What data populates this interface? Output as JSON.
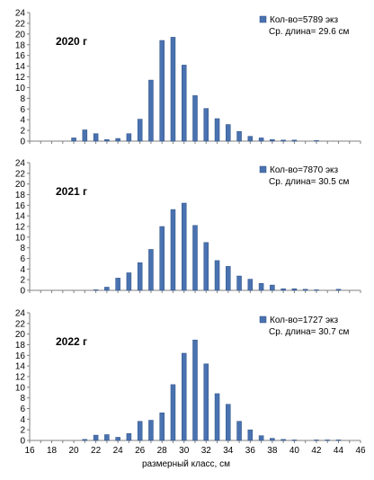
{
  "chart_data": [
    {
      "type": "bar",
      "title": "2020 г",
      "legend": {
        "series_label": "Кол-во=5789 экз",
        "note": "Ср. длина= 29.6 см",
        "placement": "top-right"
      },
      "series_color": "#4a72b0",
      "ylim": [
        0,
        24
      ],
      "yticks": [
        "0",
        "2",
        "4",
        "6",
        "8",
        "10",
        "12",
        "14",
        "16",
        "18",
        "20",
        "22",
        "24"
      ],
      "x": [
        20,
        21,
        22,
        23,
        24,
        25,
        26,
        27,
        28,
        29,
        30,
        31,
        32,
        33,
        34,
        35,
        36,
        37,
        38,
        39,
        40,
        41,
        42
      ],
      "values": [
        0.6,
        2.1,
        1.4,
        0.3,
        0.5,
        1.4,
        4.1,
        11.4,
        18.8,
        19.4,
        14.2,
        8.5,
        6.1,
        4.2,
        3.1,
        1.8,
        0.9,
        0.6,
        0.3,
        0.2,
        0.2,
        0.0,
        0.1
      ]
    },
    {
      "type": "bar",
      "title": "2021 г",
      "legend": {
        "series_label": "Кол-во=7870 экз",
        "note": "Ср. длина= 30.5 см",
        "placement": "top-right"
      },
      "series_color": "#4a72b0",
      "ylim": [
        0,
        24
      ],
      "yticks": [
        "0",
        "2",
        "4",
        "6",
        "8",
        "10",
        "12",
        "14",
        "16",
        "18",
        "20",
        "22",
        "24"
      ],
      "x": [
        22,
        23,
        24,
        25,
        26,
        27,
        28,
        29,
        30,
        31,
        32,
        33,
        34,
        35,
        36,
        37,
        38,
        39,
        40,
        41,
        42,
        43,
        44
      ],
      "values": [
        0.1,
        0.6,
        2.3,
        3.3,
        5.2,
        7.7,
        12.0,
        15.2,
        16.4,
        12.2,
        9.0,
        5.6,
        4.5,
        2.7,
        2.1,
        1.3,
        1.0,
        0.3,
        0.3,
        0.2,
        0.1,
        0.0,
        0.2
      ]
    },
    {
      "type": "bar",
      "title": "2022 г",
      "legend": {
        "series_label": "Кол-во=1727 экз",
        "note": "Ср. длина= 30.7 см",
        "placement": "top-right"
      },
      "series_color": "#4a72b0",
      "ylim": [
        0,
        24
      ],
      "yticks": [
        "0",
        "2",
        "4",
        "6",
        "8",
        "10",
        "12",
        "14",
        "16",
        "18",
        "20",
        "22",
        "24"
      ],
      "x": [
        21,
        22,
        23,
        24,
        25,
        26,
        27,
        28,
        29,
        30,
        31,
        32,
        33,
        34,
        35,
        36,
        37,
        38,
        39,
        40,
        41,
        42,
        43,
        44
      ],
      "values": [
        0.2,
        1.0,
        1.1,
        0.6,
        1.3,
        3.6,
        3.8,
        5.2,
        10.5,
        16.4,
        18.9,
        14.4,
        8.8,
        6.8,
        3.6,
        2.0,
        0.9,
        0.4,
        0.2,
        0.1,
        0.0,
        0.1,
        0.1,
        0.1
      ]
    }
  ],
  "x_axis": {
    "xlim": [
      16,
      46
    ],
    "ticks": [
      "16",
      "18",
      "20",
      "22",
      "24",
      "26",
      "28",
      "30",
      "32",
      "34",
      "36",
      "38",
      "40",
      "42",
      "44",
      "46"
    ],
    "label": "размерный класс, см"
  }
}
